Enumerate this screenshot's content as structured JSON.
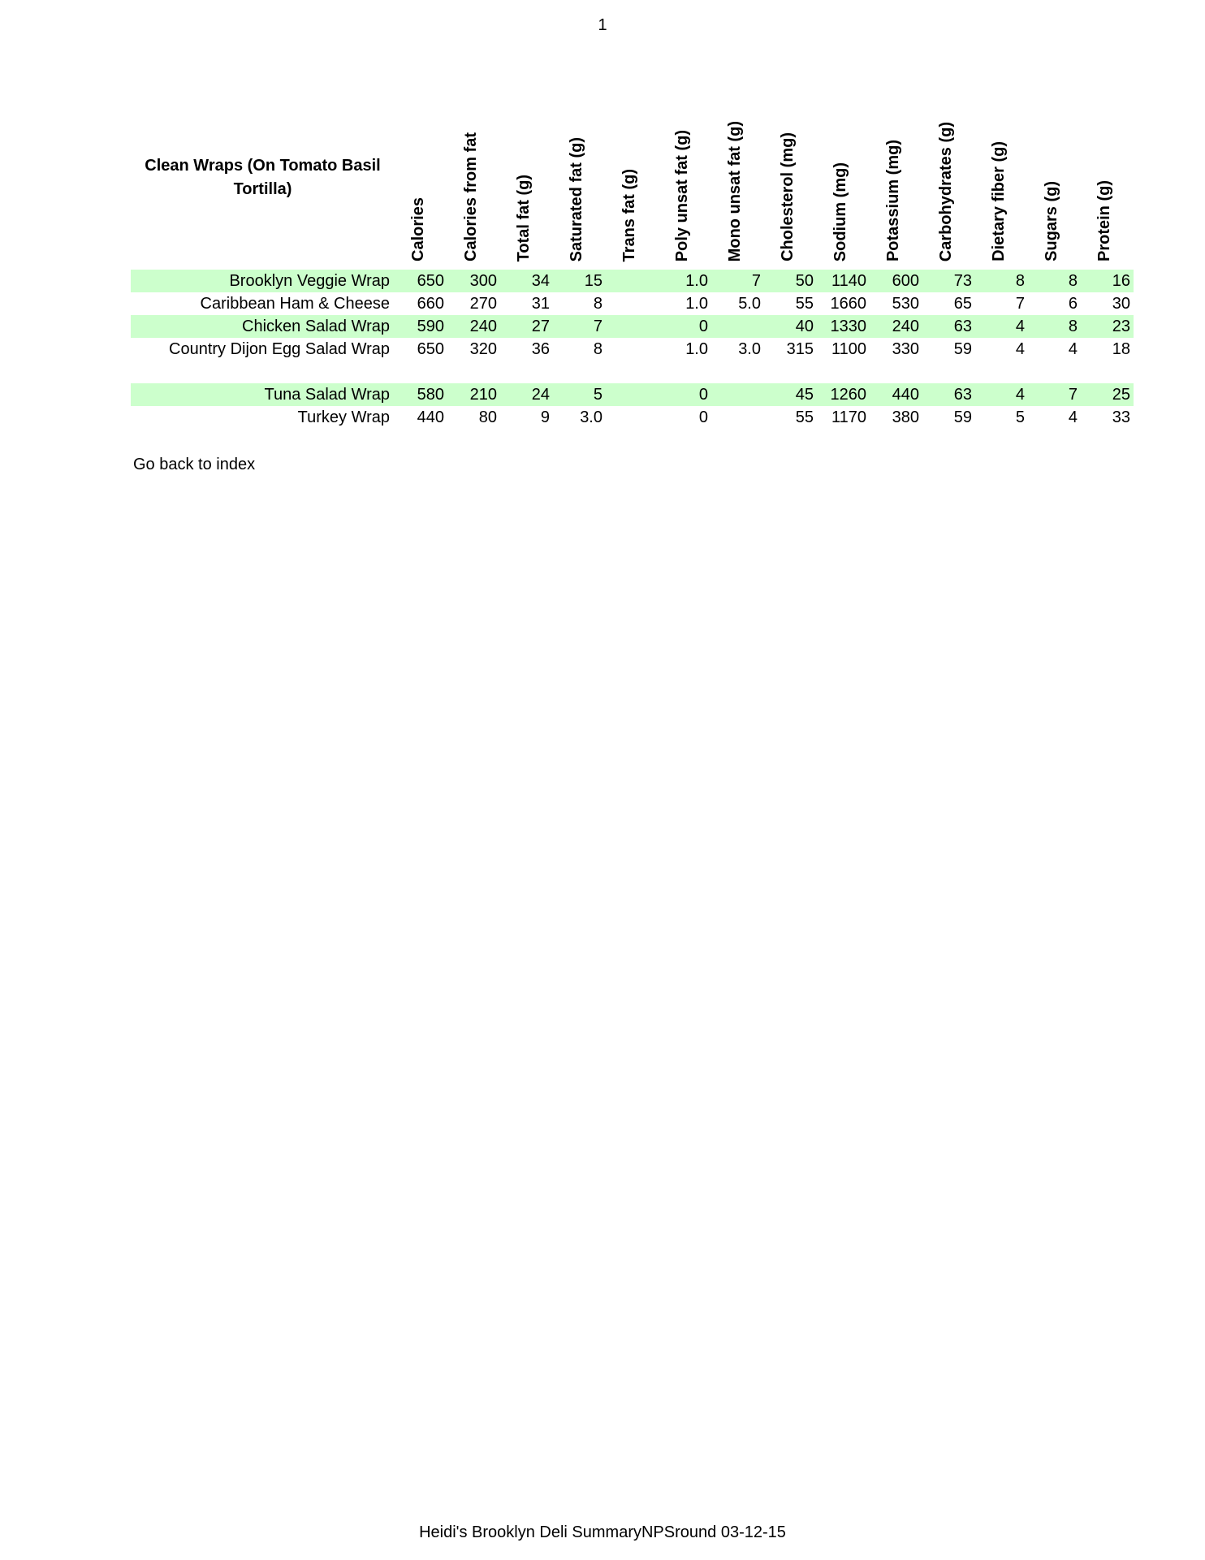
{
  "page_number": "1",
  "table": {
    "title": "Clean Wraps (On Tomato Basil Tortilla)",
    "columns": [
      "Calories",
      "Calories from fat",
      "Total fat (g)",
      "Saturated fat (g)",
      "Trans fat (g)",
      "Poly unsat fat (g)",
      "Mono unsat fat (g)",
      "Cholesterol (mg)",
      "Sodium (mg)",
      "Potassium (mg)",
      "Carbohydrates (g)",
      "Dietary fiber (g)",
      "Sugars (g)",
      "Protein (g)"
    ],
    "rows": [
      {
        "name": "Brooklyn Veggie Wrap",
        "values": [
          "650",
          "300",
          "34",
          "15",
          "",
          "1.0",
          "7",
          "50",
          "1140",
          "600",
          "73",
          "8",
          "8",
          "16"
        ],
        "highlight": true
      },
      {
        "name": "Caribbean Ham & Cheese",
        "values": [
          "660",
          "270",
          "31",
          "8",
          "",
          "1.0",
          "5.0",
          "55",
          "1660",
          "530",
          "65",
          "7",
          "6",
          "30"
        ],
        "highlight": false
      },
      {
        "name": "Chicken Salad Wrap",
        "values": [
          "590",
          "240",
          "27",
          "7",
          "",
          "0",
          "",
          "40",
          "1330",
          "240",
          "63",
          "4",
          "8",
          "23"
        ],
        "highlight": true
      },
      {
        "name": "Country Dijon Egg Salad Wrap",
        "values": [
          "650",
          "320",
          "36",
          "8",
          "",
          "1.0",
          "3.0",
          "315",
          "1100",
          "330",
          "59",
          "4",
          "4",
          "18"
        ],
        "highlight": false
      },
      {
        "name": "",
        "values": [
          "",
          "",
          "",
          "",
          "",
          "",
          "",
          "",
          "",
          "",
          "",
          "",
          "",
          ""
        ],
        "highlight": false
      },
      {
        "name": "Tuna Salad Wrap",
        "values": [
          "580",
          "210",
          "24",
          "5",
          "",
          "0",
          "",
          "45",
          "1260",
          "440",
          "63",
          "4",
          "7",
          "25"
        ],
        "highlight": true
      },
      {
        "name": "Turkey Wrap",
        "values": [
          "440",
          "80",
          "9",
          "3.0",
          "",
          "0",
          "",
          "55",
          "1170",
          "380",
          "59",
          "5",
          "4",
          "33"
        ],
        " highlight": false
      }
    ]
  },
  "back_link": "Go back to index",
  "footer": "Heidi's Brooklyn Deli SummaryNPSround 03-12-15",
  "colors": {
    "row_highlight": "#ccffcc"
  }
}
